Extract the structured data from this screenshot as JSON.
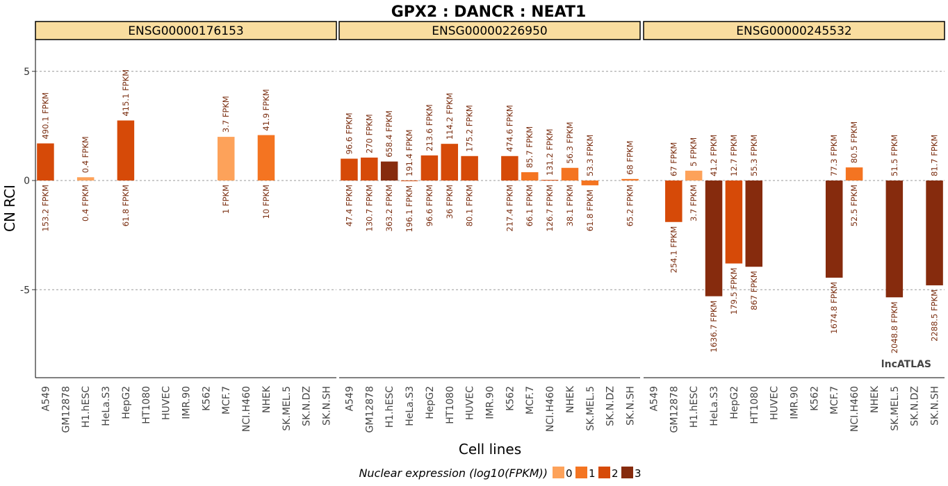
{
  "chart_data": {
    "type": "bar",
    "title": "GPX2 : DANCR : NEAT1",
    "xlabel": "Cell lines",
    "ylabel": "CN RCI",
    "ylim": [
      -9,
      6.5
    ],
    "yticks": [
      5,
      0,
      -5
    ],
    "ytick_labels": [
      "5",
      "0",
      "-5"
    ],
    "grid": "dashed horizontal at y ticks",
    "categories": [
      "A549",
      "GM12878",
      "H1.hESC",
      "HeLa.S3",
      "HepG2",
      "HT1080",
      "HUVEC",
      "IMR.90",
      "K562",
      "MCF.7",
      "NCI.H460",
      "NHEK",
      "SK.MEL.5",
      "SK.N.DZ",
      "SK.N.SH"
    ],
    "legend": {
      "title": "Nuclear expression (log10(FPKM))",
      "position": "bottom",
      "levels": [
        {
          "label": "0",
          "color": "#FDA25A"
        },
        {
          "label": "1",
          "color": "#F47421"
        },
        {
          "label": "2",
          "color": "#D64A08"
        },
        {
          "label": "3",
          "color": "#862B0D"
        }
      ]
    },
    "watermark": "lncATLAS",
    "panels": [
      {
        "strip": "ENSG00000176153",
        "bars": [
          {
            "category": "A549",
            "value": 1.7,
            "level": 2,
            "top_label": "490.1 FPKM",
            "bottom_label": "153.2 FPKM"
          },
          {
            "category": "H1.hESC",
            "value": 0.15,
            "level": 0,
            "top_label": "0.4 FPKM",
            "bottom_label": "0.4 FPKM"
          },
          {
            "category": "HepG2",
            "value": 2.75,
            "level": 2,
            "top_label": "415.1 FPKM",
            "bottom_label": "61.8 FPKM"
          },
          {
            "category": "MCF.7",
            "value": 2.0,
            "level": 0,
            "top_label": "3.7 FPKM",
            "bottom_label": "1 FPKM"
          },
          {
            "category": "NHEK",
            "value": 2.08,
            "level": 1,
            "top_label": "41.9 FPKM",
            "bottom_label": "10 FPKM"
          }
        ]
      },
      {
        "strip": "ENSG00000226950",
        "bars": [
          {
            "category": "A549",
            "value": 1.0,
            "level": 2,
            "top_label": "96.6 FPKM",
            "bottom_label": "47.4 FPKM"
          },
          {
            "category": "GM12878",
            "value": 1.05,
            "level": 2,
            "top_label": "270 FPKM",
            "bottom_label": "130.7 FPKM"
          },
          {
            "category": "H1.hESC",
            "value": 0.87,
            "level": 3,
            "top_label": "658.4 FPKM",
            "bottom_label": "363.2 FPKM"
          },
          {
            "category": "HeLa.S3",
            "value": -0.03,
            "level": 2,
            "top_label": "191.4 FPKM",
            "bottom_label": "196.1 FPKM"
          },
          {
            "category": "HepG2",
            "value": 1.15,
            "level": 2,
            "top_label": "213.6 FPKM",
            "bottom_label": "96.6 FPKM"
          },
          {
            "category": "HT1080",
            "value": 1.68,
            "level": 2,
            "top_label": "114.2 FPKM",
            "bottom_label": "36 FPKM"
          },
          {
            "category": "HUVEC",
            "value": 1.12,
            "level": 2,
            "top_label": "175.2 FPKM",
            "bottom_label": "80.1 FPKM"
          },
          {
            "category": "K562",
            "value": 1.12,
            "level": 2,
            "top_label": "474.6 FPKM",
            "bottom_label": "217.4 FPKM"
          },
          {
            "category": "MCF.7",
            "value": 0.38,
            "level": 1,
            "top_label": "85.7 FPKM",
            "bottom_label": "66.1 FPKM"
          },
          {
            "category": "NCI.H460",
            "value": 0.03,
            "level": 2,
            "top_label": "131.2 FPKM",
            "bottom_label": "126.7 FPKM"
          },
          {
            "category": "NHEK",
            "value": 0.58,
            "level": 1,
            "top_label": "56.3 FPKM",
            "bottom_label": "38.1 FPKM"
          },
          {
            "category": "SK.MEL.5",
            "value": -0.22,
            "level": 1,
            "top_label": "53.3 FPKM",
            "bottom_label": "61.8 FPKM"
          },
          {
            "category": "SK.N.SH",
            "value": 0.07,
            "level": 1,
            "top_label": "68 FPKM",
            "bottom_label": "65.2 FPKM"
          }
        ]
      },
      {
        "strip": "ENSG00000245532",
        "bars": [
          {
            "category": "GM12878",
            "value": -1.9,
            "level": 2,
            "top_label": "67 FPKM",
            "bottom_label": "254.1 FPKM"
          },
          {
            "category": "H1.hESC",
            "value": 0.45,
            "level": 0,
            "top_label": "5 FPKM",
            "bottom_label": "3.7 FPKM"
          },
          {
            "category": "HeLa.S3",
            "value": -5.3,
            "level": 3,
            "top_label": "41.2 FPKM",
            "bottom_label": "1636.7 FPKM"
          },
          {
            "category": "HepG2",
            "value": -3.8,
            "level": 2,
            "top_label": "12.7 FPKM",
            "bottom_label": "179.5 FPKM"
          },
          {
            "category": "HT1080",
            "value": -3.95,
            "level": 3,
            "top_label": "55.3 FPKM",
            "bottom_label": "867 FPKM"
          },
          {
            "category": "MCF.7",
            "value": -4.45,
            "level": 3,
            "top_label": "77.3 FPKM",
            "bottom_label": "1674.8 FPKM"
          },
          {
            "category": "NCI.H460",
            "value": 0.6,
            "level": 1,
            "top_label": "80.5 FPKM",
            "bottom_label": "52.5 FPKM"
          },
          {
            "category": "SK.MEL.5",
            "value": -5.35,
            "level": 3,
            "top_label": "51.5 FPKM",
            "bottom_label": "2048.8 FPKM"
          },
          {
            "category": "SK.N.SH",
            "value": -4.8,
            "level": 3,
            "top_label": "81.7 FPKM",
            "bottom_label": "2288.5 FPKM"
          }
        ]
      }
    ]
  }
}
